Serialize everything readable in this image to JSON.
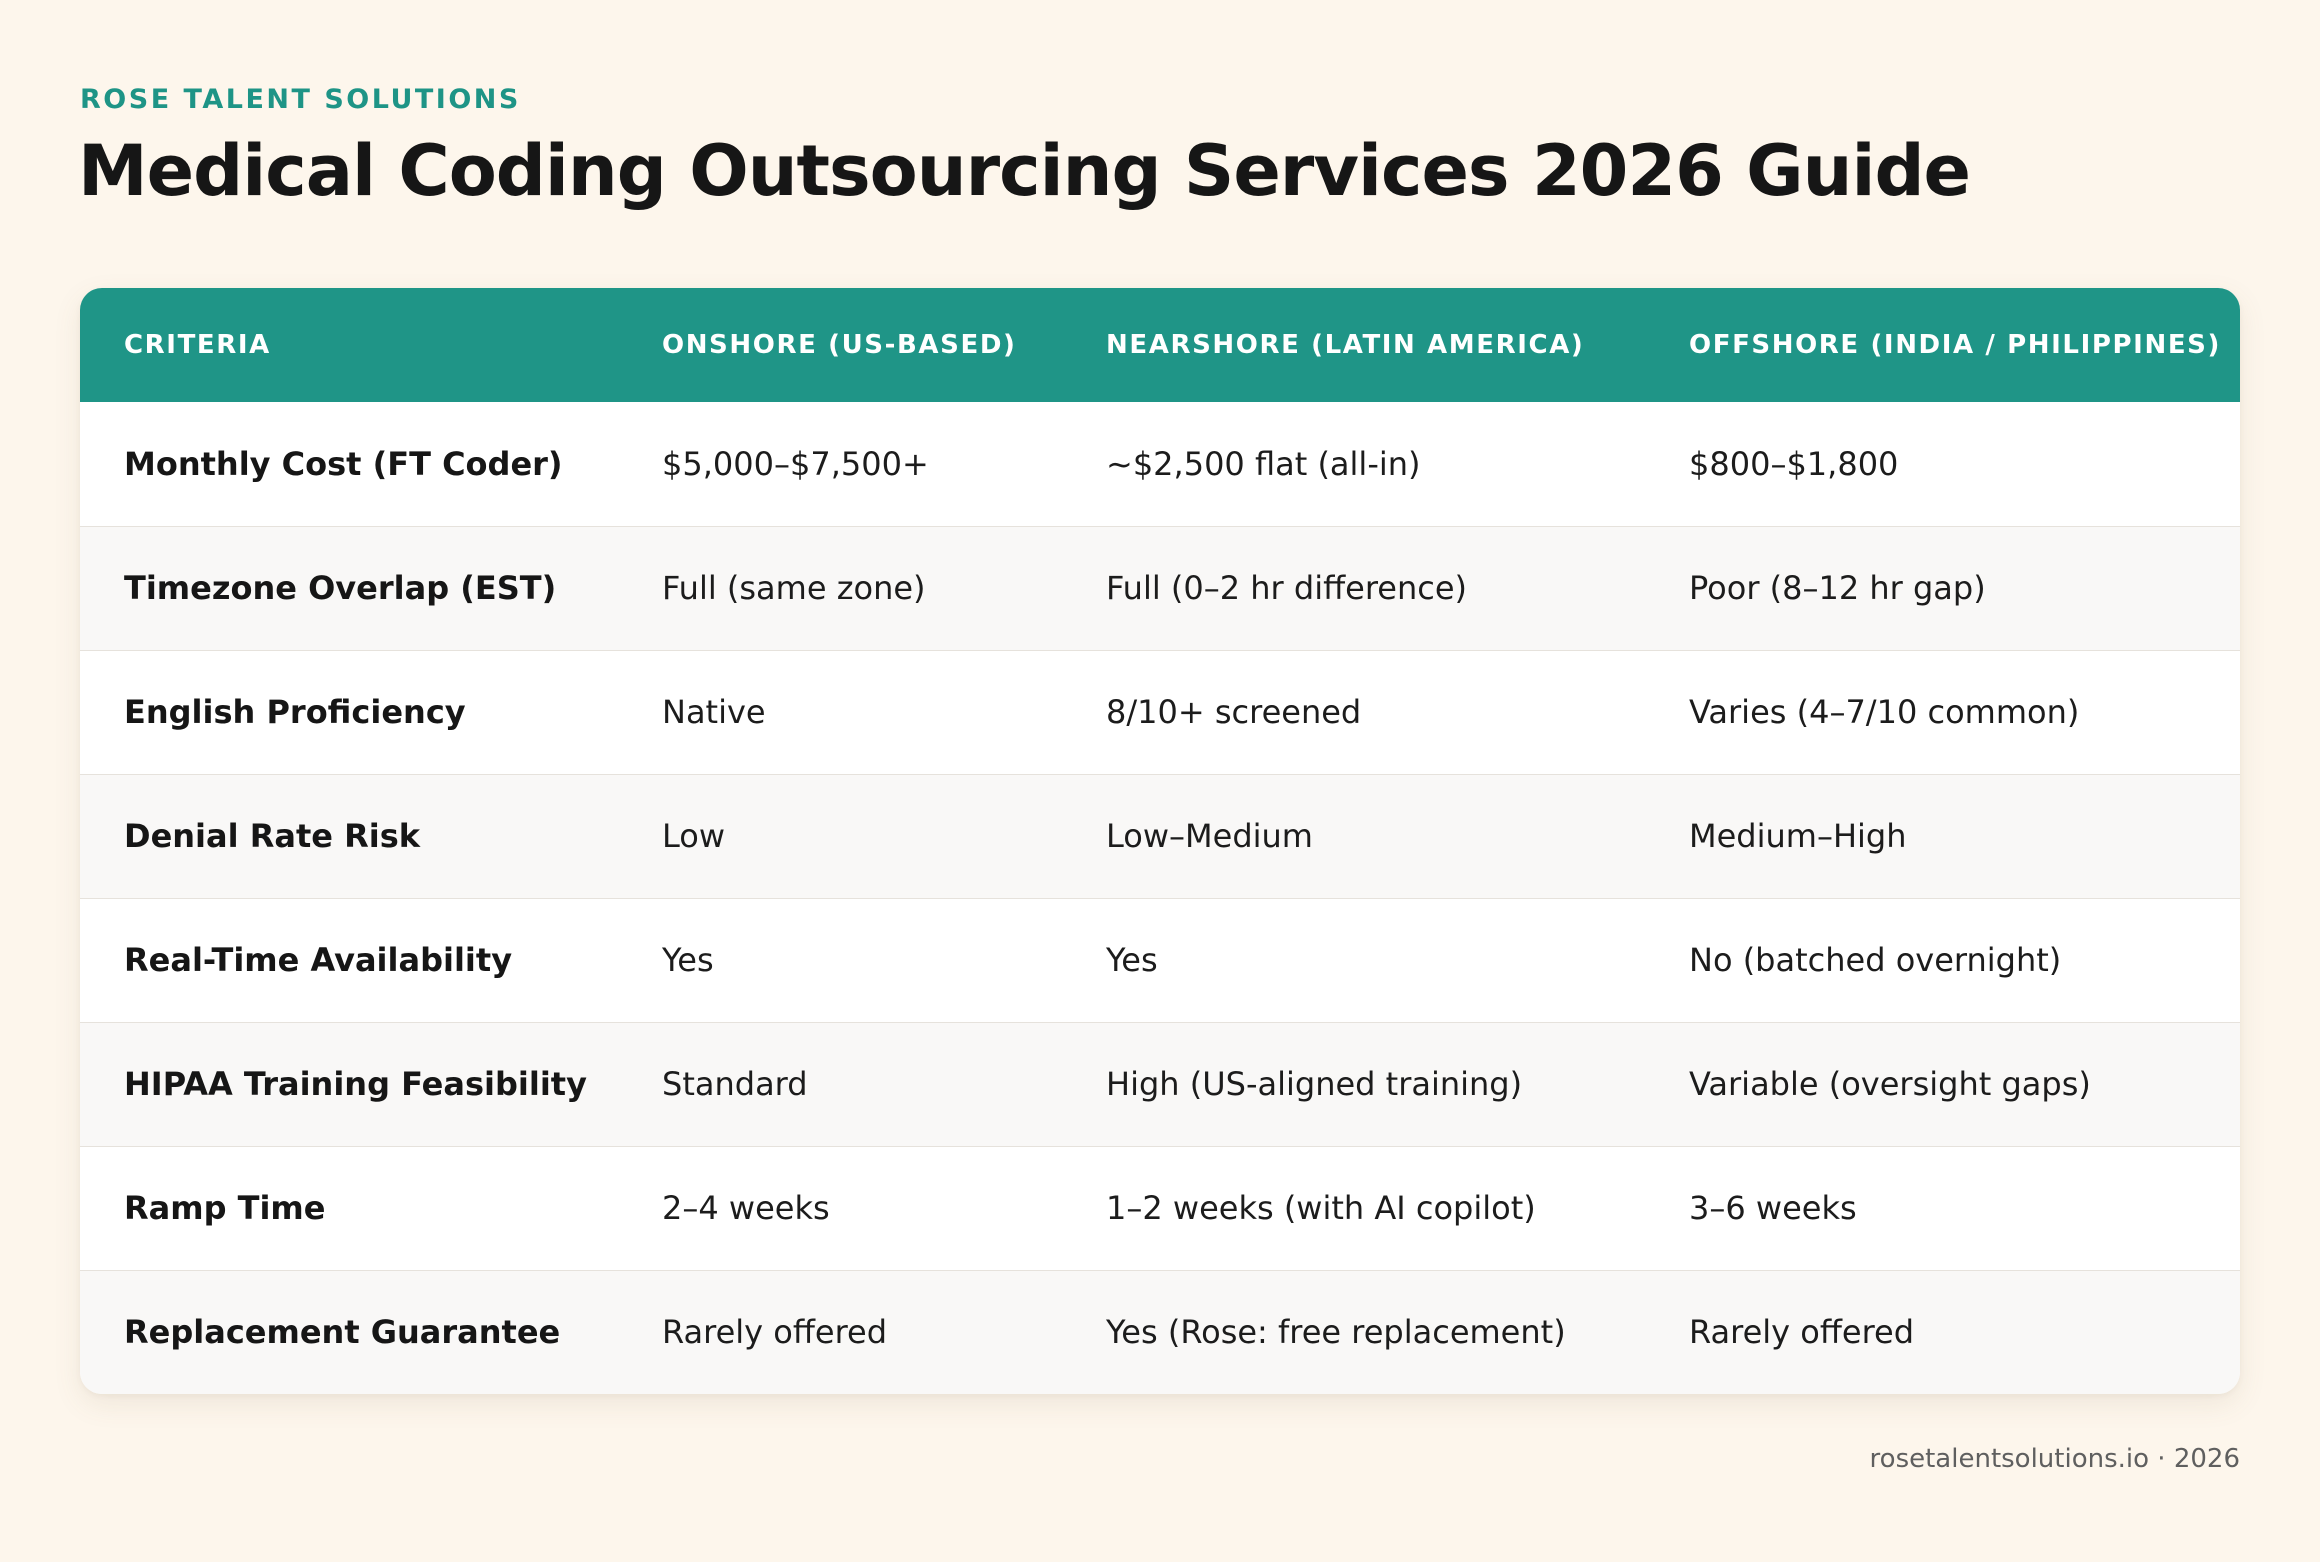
{
  "brand": "ROSE TALENT SOLUTIONS",
  "title": "Medical Coding Outsourcing Services 2026 Guide",
  "table": {
    "headers": [
      "CRITERIA",
      "ONSHORE (US-BASED)",
      "NEARSHORE (LATIN AMERICA)",
      "OFFSHORE (INDIA / PHILIPPINES)"
    ],
    "rows": [
      [
        "Monthly Cost (FT Coder)",
        "$5,000–$7,500+",
        "~$2,500 flat (all-in)",
        "$800–$1,800"
      ],
      [
        "Timezone Overlap (EST)",
        "Full (same zone)",
        "Full (0–2 hr difference)",
        "Poor (8–12 hr gap)"
      ],
      [
        "English Proficiency",
        "Native",
        "8/10+ screened",
        "Varies (4–7/10 common)"
      ],
      [
        "Denial Rate Risk",
        "Low",
        "Low–Medium",
        "Medium–High"
      ],
      [
        "Real-Time Availability",
        "Yes",
        "Yes",
        "No (batched overnight)"
      ],
      [
        "HIPAA Training Feasibility",
        "Standard",
        "High (US-aligned training)",
        "Variable (oversight gaps)"
      ],
      [
        "Ramp Time",
        "2–4 weeks",
        "1–2 weeks (with AI copilot)",
        "3–6 weeks"
      ],
      [
        "Replacement Guarantee",
        "Rarely offered",
        "Yes (Rose: free replacement)",
        "Rarely offered"
      ]
    ]
  },
  "footer": "rosetalentsolutions.io · 2026",
  "colors": {
    "accent": "#1f9587",
    "background": "#fdf6ec",
    "text": "#161616"
  }
}
